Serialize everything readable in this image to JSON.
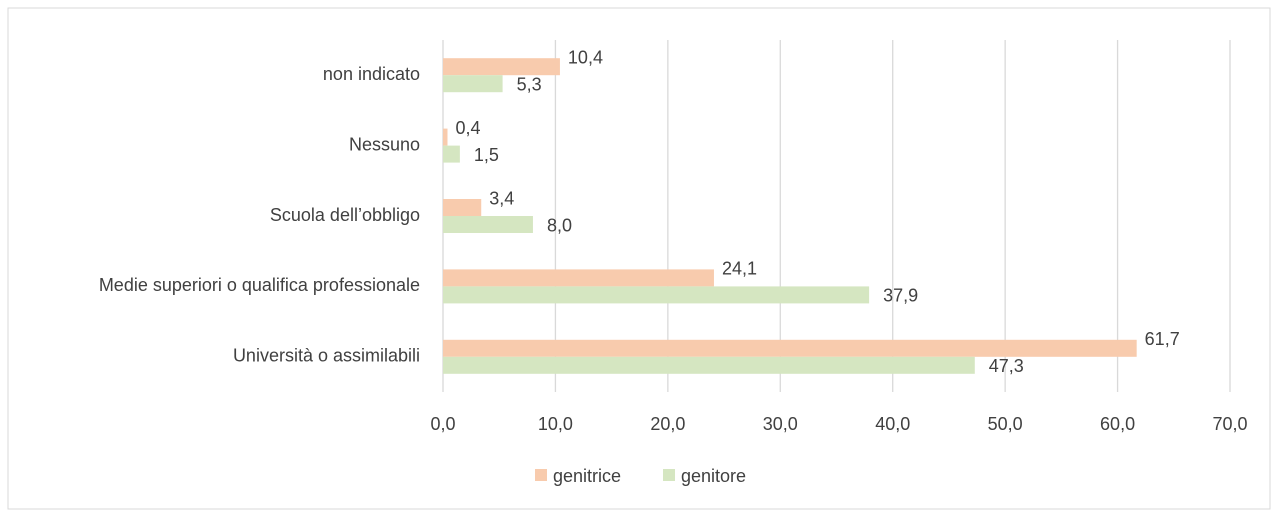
{
  "chart_data": {
    "type": "bar",
    "orientation": "horizontal",
    "categories": [
      "non indicato",
      "Nessuno",
      "Scuola dell’obbligo",
      "Medie superiori o qualifica professionale",
      "Università o assimilabili"
    ],
    "series": [
      {
        "name": "genitrice",
        "color": "#f8cbad",
        "values": [
          10.4,
          0.4,
          3.4,
          24.1,
          61.7
        ],
        "value_labels": [
          "10,4",
          "0,4",
          "3,4",
          "24,1",
          "61,7"
        ]
      },
      {
        "name": "genitore",
        "color": "#d5e6c1",
        "values": [
          5.3,
          1.5,
          8.0,
          37.9,
          47.3
        ],
        "value_labels": [
          "5,3",
          "1,5",
          "8,0",
          "37,9",
          "47,3"
        ]
      }
    ],
    "xlim": [
      0,
      70
    ],
    "xticks": [
      {
        "value": 0,
        "label": "0,0"
      },
      {
        "value": 10,
        "label": "10,0"
      },
      {
        "value": 20,
        "label": "20,0"
      },
      {
        "value": 30,
        "label": "30,0"
      },
      {
        "value": 40,
        "label": "40,0"
      },
      {
        "value": 50,
        "label": "50,0"
      },
      {
        "value": 60,
        "label": "60,0"
      },
      {
        "value": 70,
        "label": "70,0"
      }
    ],
    "grid": true,
    "legend": "bottom"
  }
}
